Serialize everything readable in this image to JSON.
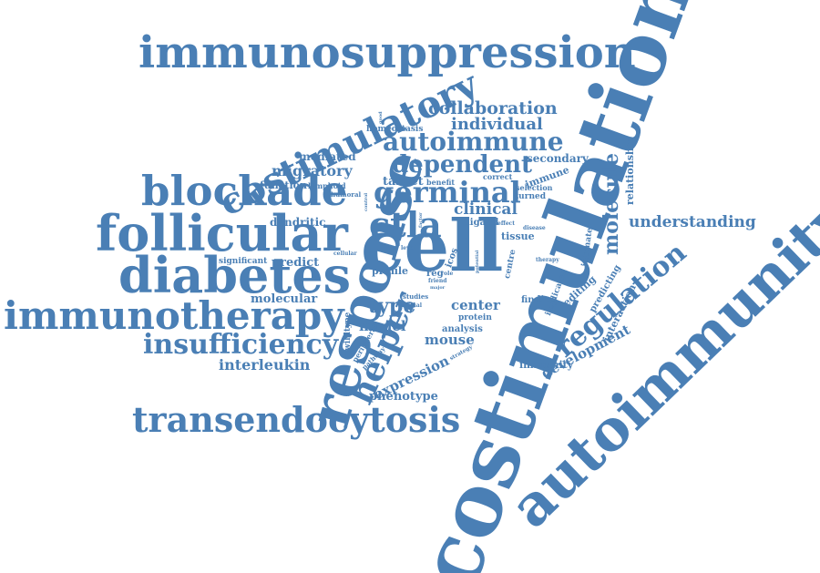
{
  "word_color": "#4a7fb5",
  "background_color": "#ffffff",
  "words": [
    {
      "key": "costimulation",
      "text": "costimulation"
    },
    {
      "key": "autoimmunity",
      "text": "autoimmunity"
    },
    {
      "key": "cell",
      "text": "cell"
    },
    {
      "key": "response",
      "text": "response"
    },
    {
      "key": "immunosuppression",
      "text": "immunosuppression"
    },
    {
      "key": "follicular",
      "text": "follicular"
    },
    {
      "key": "diabetes",
      "text": "diabetes"
    },
    {
      "key": "blockade",
      "text": "blockade"
    },
    {
      "key": "immunotherapy",
      "text": "immunotherapy"
    },
    {
      "key": "costimulatory",
      "text": "costimulatory"
    },
    {
      "key": "transendocytosis",
      "text": "transendocytosis"
    },
    {
      "key": "insufficiency",
      "text": "insufficiency"
    },
    {
      "key": "ctla",
      "text": "ctla"
    },
    {
      "key": "helper",
      "text": "helper"
    },
    {
      "key": "germinal",
      "text": "germinal"
    },
    {
      "key": "autoimmune",
      "text": "autoimmune"
    },
    {
      "key": "dependent",
      "text": "dependent"
    },
    {
      "key": "collaboration",
      "text": "collaboration"
    },
    {
      "key": "individual",
      "text": "individual"
    },
    {
      "key": "regulation",
      "text": "regulation"
    },
    {
      "key": "molecule",
      "text": "molecule"
    },
    {
      "key": "understanding",
      "text": "understanding"
    },
    {
      "key": "interleukin",
      "text": "interleukin"
    },
    {
      "key": "type",
      "text": "type"
    },
    {
      "key": "migratory",
      "text": "migratory"
    },
    {
      "key": "clinical",
      "text": "clinical"
    },
    {
      "key": "development",
      "text": "development"
    },
    {
      "key": "expression",
      "text": "expression"
    },
    {
      "key": "phenotype",
      "text": "phenotype"
    },
    {
      "key": "mouse",
      "text": "mouse"
    },
    {
      "key": "model",
      "text": "model"
    },
    {
      "key": "center",
      "text": "center"
    },
    {
      "key": "dendritic",
      "text": "dendritic"
    },
    {
      "key": "predict",
      "text": "predict"
    },
    {
      "key": "molecular",
      "text": "molecular"
    },
    {
      "key": "target",
      "text": "target"
    },
    {
      "key": "mediated",
      "text": "mediated"
    },
    {
      "key": "function",
      "text": "function"
    },
    {
      "key": "secondary",
      "text": "secondary"
    },
    {
      "key": "homeostasis",
      "text": "homeostasis"
    },
    {
      "key": "relationship",
      "text": "relationship"
    },
    {
      "key": "editing",
      "text": "editing"
    },
    {
      "key": "predicting",
      "text": "predicting"
    },
    {
      "key": "interaction",
      "text": "interaction"
    },
    {
      "key": "immune",
      "text": "immune"
    },
    {
      "key": "tissue",
      "text": "tissue"
    },
    {
      "key": "profile",
      "text": "profile"
    },
    {
      "key": "immunity",
      "text": "immunity"
    },
    {
      "key": "finding",
      "text": "finding"
    },
    {
      "key": "ligand",
      "text": "ligand"
    },
    {
      "key": "analysis",
      "text": "analysis"
    },
    {
      "key": "protein",
      "text": "protein"
    },
    {
      "key": "icos",
      "text": "icos"
    },
    {
      "key": "reg",
      "text": "reg"
    },
    {
      "key": "significant",
      "text": "significant"
    },
    {
      "key": "lymphoid",
      "text": "lymphoid"
    },
    {
      "key": "humoral",
      "text": "humoral"
    },
    {
      "key": "benefit",
      "text": "benefit"
    },
    {
      "key": "correct",
      "text": "correct"
    },
    {
      "key": "selection",
      "text": "selection"
    },
    {
      "key": "turned",
      "text": "turned"
    },
    {
      "key": "studies",
      "text": "studies"
    },
    {
      "key": "animal",
      "text": "animal"
    },
    {
      "key": "centre",
      "text": "centre"
    },
    {
      "key": "implicated",
      "text": "implicated"
    },
    {
      "key": "intimate",
      "text": "intimate"
    },
    {
      "key": "wildtype",
      "text": "wildtype"
    },
    {
      "key": "peripheral",
      "text": "peripheral"
    },
    {
      "key": "pathway",
      "text": "pathway"
    },
    {
      "key": "strategy",
      "text": "strategy"
    },
    {
      "key": "therapy",
      "text": "therapy"
    },
    {
      "key": "disease",
      "text": "disease"
    },
    {
      "key": "cellular",
      "text": "cellular"
    },
    {
      "key": "level",
      "text": "level"
    },
    {
      "key": "friend",
      "text": "friend"
    },
    {
      "key": "role",
      "text": "role"
    },
    {
      "key": "major",
      "text": "major"
    },
    {
      "key": "good",
      "text": "good"
    },
    {
      "key": "effect",
      "text": "effect"
    },
    {
      "key": "manner",
      "text": "manner"
    },
    {
      "key": "control",
      "text": "control"
    },
    {
      "key": "factor",
      "text": "factor"
    },
    {
      "key": "potential",
      "text": "potential"
    }
  ]
}
